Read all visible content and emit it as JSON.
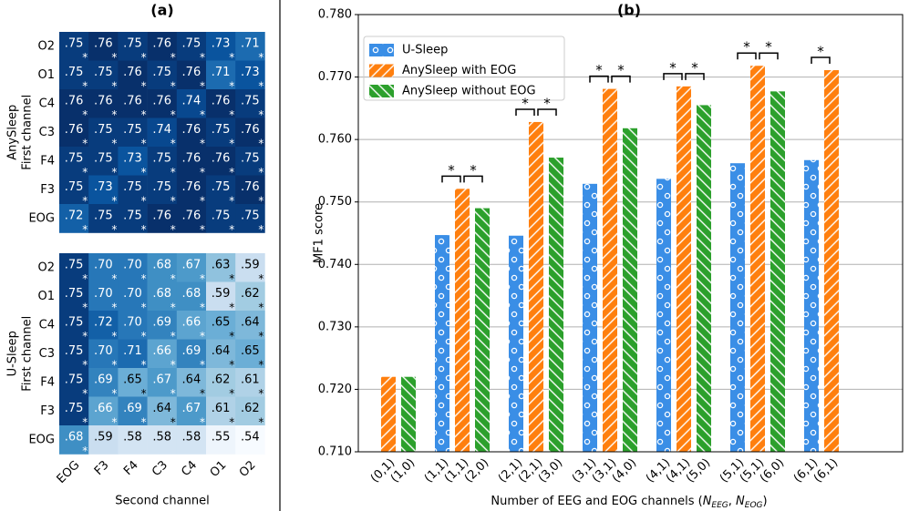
{
  "chart_data": [
    {
      "type": "heatmap",
      "panel": "(a)",
      "ylabel": [
        "AnySleep",
        "First channel"
      ],
      "rows": [
        "O2",
        "O1",
        "C4",
        "C3",
        "F4",
        "F3",
        "EOG"
      ],
      "values": [
        [
          0.75,
          0.76,
          0.75,
          0.76,
          0.75,
          0.73,
          0.71
        ],
        [
          0.75,
          0.75,
          0.76,
          0.75,
          0.76,
          0.71,
          0.73
        ],
        [
          0.76,
          0.76,
          0.76,
          0.76,
          0.74,
          0.76,
          0.75
        ],
        [
          0.76,
          0.75,
          0.75,
          0.74,
          0.76,
          0.75,
          0.76
        ],
        [
          0.75,
          0.75,
          0.73,
          0.75,
          0.76,
          0.76,
          0.75
        ],
        [
          0.75,
          0.73,
          0.75,
          0.75,
          0.76,
          0.75,
          0.76
        ],
        [
          0.72,
          0.75,
          0.75,
          0.76,
          0.76,
          0.75,
          0.75
        ]
      ],
      "value_labels": [
        [
          ".75",
          ".76",
          ".75",
          ".76",
          ".75",
          ".73",
          ".71"
        ],
        [
          ".75",
          ".75",
          ".76",
          ".75",
          ".76",
          ".71",
          ".73"
        ],
        [
          ".76",
          ".76",
          ".76",
          ".76",
          ".74",
          ".76",
          ".75"
        ],
        [
          ".76",
          ".75",
          ".75",
          ".74",
          ".76",
          ".75",
          ".76"
        ],
        [
          ".75",
          ".75",
          ".73",
          ".75",
          ".76",
          ".76",
          ".75"
        ],
        [
          ".75",
          ".73",
          ".75",
          ".75",
          ".76",
          ".75",
          ".76"
        ],
        [
          ".72",
          ".75",
          ".75",
          ".76",
          ".76",
          ".75",
          ".75"
        ]
      ],
      "significant": [
        [
          true,
          true,
          true,
          true,
          true,
          true,
          true
        ],
        [
          true,
          true,
          true,
          true,
          true,
          true,
          true
        ],
        [
          true,
          true,
          true,
          true,
          true,
          true,
          true
        ],
        [
          true,
          true,
          true,
          true,
          true,
          true,
          true
        ],
        [
          true,
          true,
          true,
          true,
          true,
          true,
          true
        ],
        [
          true,
          true,
          true,
          true,
          true,
          true,
          true
        ],
        [
          true,
          true,
          true,
          true,
          true,
          true,
          true
        ]
      ],
      "star": "*",
      "clim": [
        0.54,
        0.76
      ],
      "colors": [
        "#f7fbff",
        "#deebf7",
        "#c6dbef",
        "#9ecae1",
        "#6baed6",
        "#4292c6",
        "#2171b5",
        "#08519c",
        "#08306b"
      ]
    },
    {
      "type": "heatmap",
      "ylabel": [
        "U-Sleep",
        "First channel"
      ],
      "xlabel": "Second channel",
      "rows": [
        "O2",
        "O1",
        "C4",
        "C3",
        "F4",
        "F3",
        "EOG"
      ],
      "columns": [
        "EOG",
        "F3",
        "F4",
        "C3",
        "C4",
        "O1",
        "O2"
      ],
      "values": [
        [
          0.75,
          0.7,
          0.7,
          0.68,
          0.67,
          0.63,
          0.59
        ],
        [
          0.75,
          0.7,
          0.7,
          0.68,
          0.68,
          0.59,
          0.62
        ],
        [
          0.75,
          0.72,
          0.7,
          0.69,
          0.66,
          0.65,
          0.64
        ],
        [
          0.75,
          0.7,
          0.71,
          0.66,
          0.69,
          0.64,
          0.65
        ],
        [
          0.75,
          0.69,
          0.65,
          0.67,
          0.64,
          0.62,
          0.61
        ],
        [
          0.75,
          0.66,
          0.69,
          0.64,
          0.67,
          0.61,
          0.62
        ],
        [
          0.68,
          0.59,
          0.58,
          0.58,
          0.58,
          0.55,
          0.54
        ]
      ],
      "value_labels": [
        [
          ".75",
          ".70",
          ".70",
          ".68",
          ".67",
          ".63",
          ".59"
        ],
        [
          ".75",
          ".70",
          ".70",
          ".68",
          ".68",
          ".59",
          ".62"
        ],
        [
          ".75",
          ".72",
          ".70",
          ".69",
          ".66",
          ".65",
          ".64"
        ],
        [
          ".75",
          ".70",
          ".71",
          ".66",
          ".69",
          ".64",
          ".65"
        ],
        [
          ".75",
          ".69",
          ".65",
          ".67",
          ".64",
          ".62",
          ".61"
        ],
        [
          ".75",
          ".66",
          ".69",
          ".64",
          ".67",
          ".61",
          ".62"
        ],
        [
          ".68",
          ".59",
          ".58",
          ".58",
          ".58",
          ".55",
          ".54"
        ]
      ],
      "significant": [
        [
          true,
          true,
          true,
          true,
          true,
          true,
          true
        ],
        [
          true,
          true,
          true,
          true,
          true,
          true,
          true
        ],
        [
          true,
          true,
          true,
          true,
          true,
          true,
          true
        ],
        [
          true,
          true,
          true,
          true,
          true,
          true,
          true
        ],
        [
          true,
          true,
          true,
          true,
          true,
          true,
          true
        ],
        [
          true,
          true,
          true,
          true,
          true,
          true,
          true
        ],
        [
          true,
          false,
          false,
          false,
          false,
          false,
          false
        ]
      ],
      "star": "*",
      "clim": [
        0.54,
        0.76
      ],
      "colors": [
        "#f7fbff",
        "#deebf7",
        "#c6dbef",
        "#9ecae1",
        "#6baed6",
        "#4292c6",
        "#2171b5",
        "#08519c",
        "#08306b"
      ]
    },
    {
      "type": "bar",
      "panel": "(b)",
      "ylabel": "MF1 score",
      "xlabel_parts": [
        "Number of EEG and EOG channels (",
        "N",
        "EEG",
        ", ",
        "N",
        "EOG",
        ")"
      ],
      "series": [
        {
          "name": "U-Sleep",
          "color": "#3a8ee6",
          "hatch": "o",
          "values": [
            null,
            0.7447,
            0.7446,
            0.7529,
            0.7537,
            0.7562,
            0.7567
          ],
          "labels": [
            null,
            "(1,1)",
            "(2,1)",
            "(3,1)",
            "(4,1)",
            "(5,1)",
            "(6,1)"
          ]
        },
        {
          "name": "AnySleep with EOG",
          "color": "#ff7f0e",
          "hatch": "/",
          "values": [
            0.722,
            0.7521,
            0.7628,
            0.7681,
            0.7685,
            0.7718,
            0.7711
          ],
          "labels": [
            "(0,1)",
            "(1,1)",
            "(2,1)",
            "(3,1)",
            "(4,1)",
            "(5,1)",
            "(6,1)"
          ]
        },
        {
          "name": "AnySleep without EOG",
          "color": "#2ca02c",
          "hatch": "\\",
          "values": [
            0.722,
            0.749,
            0.7571,
            0.7618,
            0.7655,
            0.7677,
            null
          ],
          "labels": [
            "(1,0)",
            "(2,0)",
            "(3,0)",
            "(4,0)",
            "(5,0)",
            "(6,0)",
            null
          ]
        }
      ],
      "significance_symbol": "*",
      "significant": [
        [
          false,
          true,
          true,
          true,
          true,
          true,
          true
        ],
        [
          false,
          true,
          true,
          true,
          true,
          true,
          false
        ]
      ],
      "ylim": [
        0.71,
        0.78
      ],
      "yticks": [
        {
          "value": 0.71,
          "label": "0.710"
        },
        {
          "value": 0.72,
          "label": "0.720"
        },
        {
          "value": 0.73,
          "label": "0.730"
        },
        {
          "value": 0.74,
          "label": "0.740"
        },
        {
          "value": 0.75,
          "label": "0.750"
        },
        {
          "value": 0.76,
          "label": "0.760"
        },
        {
          "value": 0.77,
          "label": "0.770"
        },
        {
          "value": 0.78,
          "label": "0.780"
        }
      ],
      "grid": true,
      "legend": "upper left"
    }
  ]
}
